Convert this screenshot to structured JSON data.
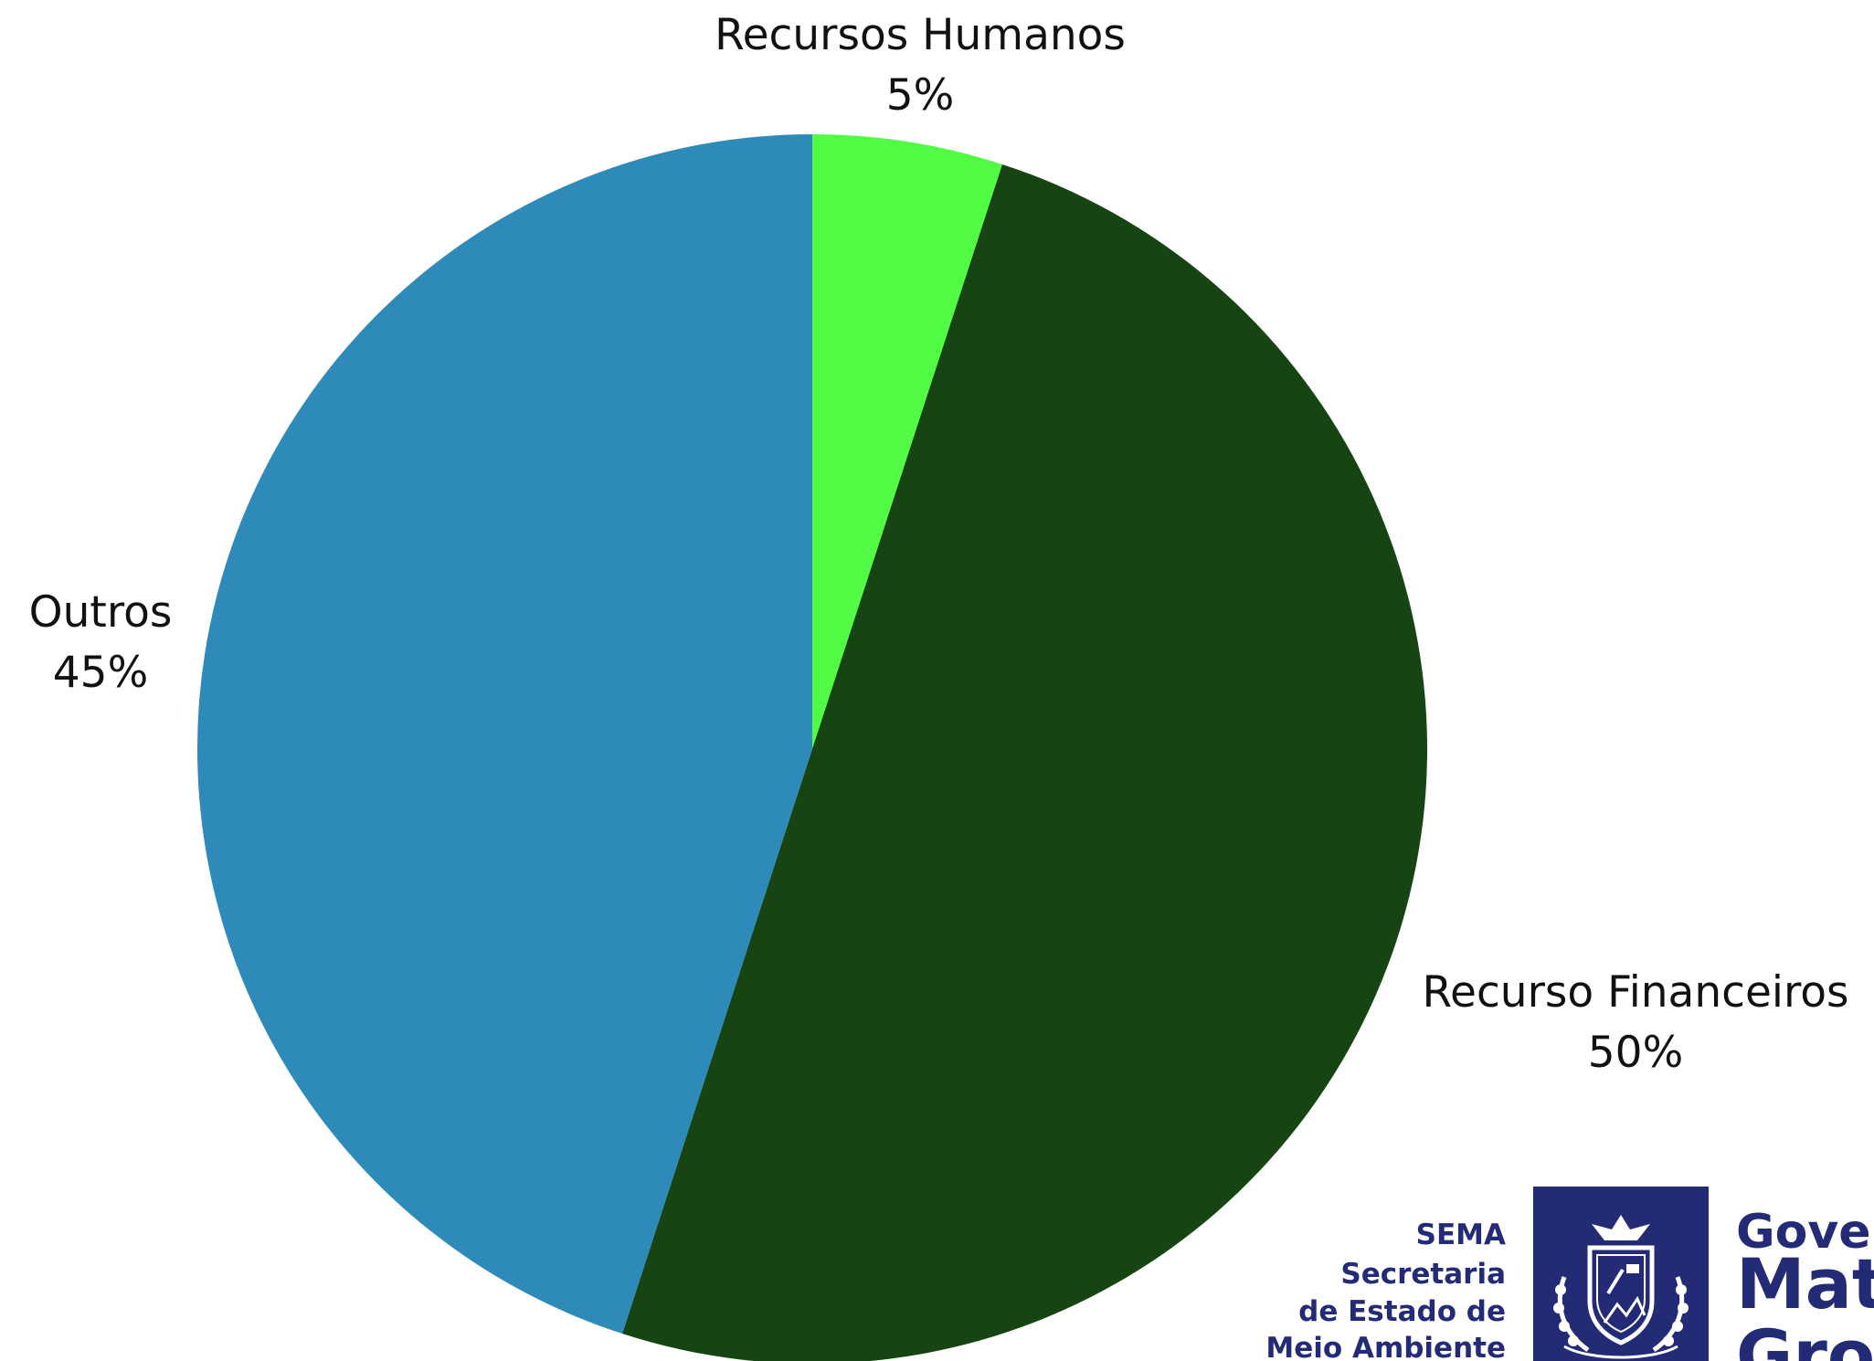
{
  "chart_data": {
    "type": "pie",
    "slices": [
      {
        "label": "Recursos Humanos",
        "value": 5,
        "percent_label": "5%",
        "color": "#52fb44"
      },
      {
        "label": "Recurso Financeiros",
        "value": 50,
        "percent_label": "50%",
        "color": "#164412"
      },
      {
        "label": "Outros",
        "value": 45,
        "percent_label": "45%",
        "color": "#2e8bb9"
      }
    ],
    "start_angle": "12 o'clock, clockwise",
    "legend": "none (labels beside slices)"
  },
  "logo": {
    "sema_lines": [
      "SEMA",
      "Secretaria",
      "de Estado de",
      "Meio Ambiente"
    ],
    "government_lines": [
      "Governo de",
      "Mato",
      "Grosso"
    ],
    "color": "#232b76"
  }
}
